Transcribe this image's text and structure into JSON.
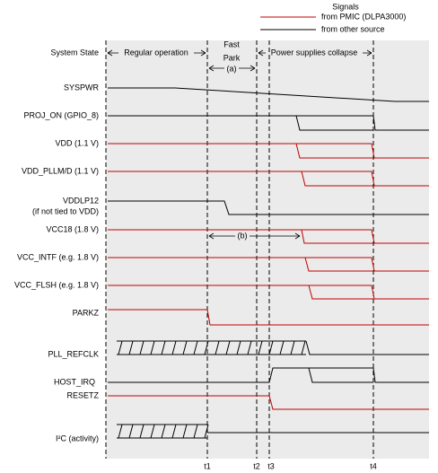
{
  "legend": {
    "title": "Signals",
    "pmic": "from PMIC (DLPA3000)",
    "other": "from other source"
  },
  "system_state": {
    "label": "System State",
    "phases": [
      "Regular operation",
      "Fast",
      "Park",
      "Power supplies collapse"
    ],
    "note": "(a)"
  },
  "signals": [
    "SYSPWR",
    "PROJ_ON (GPIO_8)",
    "VDD (1.1 V)",
    "VDD_PLLM/D (1.1 V)",
    "VDDLP12",
    "(if not tied to VDD)",
    "VCC18 (1.8 V)",
    "VCC_INTF (e.g. 1.8 V)",
    "VCC_FLSH (e.g. 1.8 V)",
    "PARKZ",
    "PLL_REFCLK",
    "HOST_IRQ",
    "RESETZ",
    "I²C (activity)"
  ],
  "note_b": "(b)",
  "times": [
    "t1",
    "t2",
    "t3",
    "t4"
  ]
}
